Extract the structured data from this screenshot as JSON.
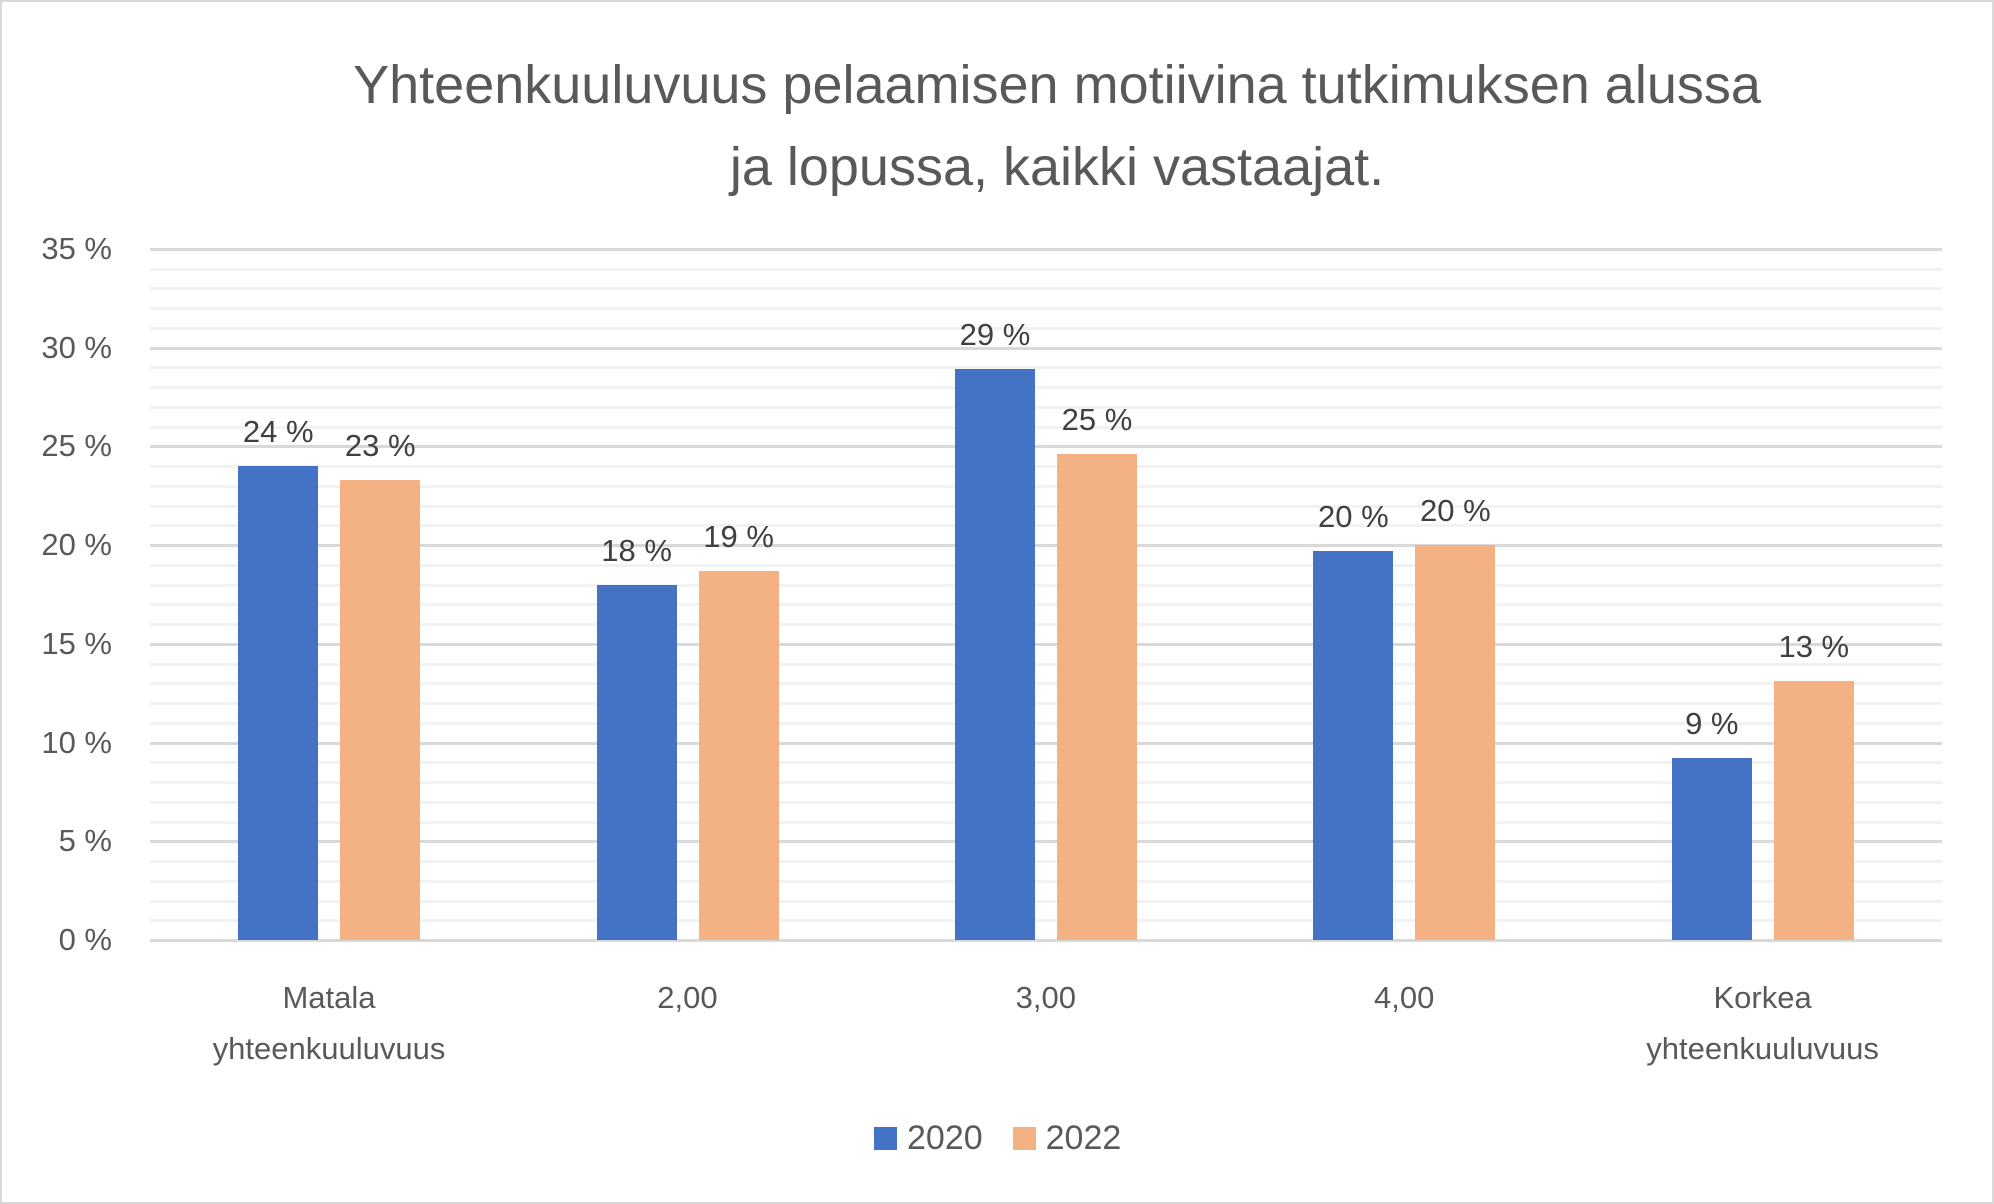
{
  "chart_data": {
    "type": "bar",
    "title": "Yhteenkuuluvuus pelaamisen motiivina tutkimuksen alussa ja lopussa, kaikki vastaajat.",
    "title_lines": [
      "Yhteenkuuluvuus pelaamisen motiivina tutkimuksen alussa",
      "ja lopussa, kaikki vastaajat."
    ],
    "categories": [
      "Matala yhteenkuuluvuus",
      "2,00",
      "3,00",
      "4,00",
      "Korkea yhteenkuuluvuus"
    ],
    "category_lines": [
      [
        "Matala",
        "yhteenkuuluvuus"
      ],
      [
        "2,00"
      ],
      [
        "3,00"
      ],
      [
        "4,00"
      ],
      [
        "Korkea",
        "yhteenkuuluvuus"
      ]
    ],
    "series": [
      {
        "name": "2020",
        "color": "#4472c4",
        "values": [
          24.0,
          18.0,
          28.9,
          19.7,
          9.2
        ],
        "labels": [
          "24 %",
          "18 %",
          "29 %",
          "20 %",
          "9 %"
        ]
      },
      {
        "name": "2022",
        "color": "#f4b183",
        "values": [
          23.3,
          18.7,
          24.6,
          20.0,
          13.1
        ],
        "labels": [
          "23 %",
          "19 %",
          "25 %",
          "20 %",
          "13 %"
        ]
      }
    ],
    "xlabel": "",
    "ylabel": "",
    "ylim": [
      0,
      35
    ],
    "yticks": [
      "0 %",
      "5 %",
      "10 %",
      "15 %",
      "20 %",
      "25 %",
      "30 %",
      "35 %"
    ],
    "ytick_values": [
      0,
      5,
      10,
      15,
      20,
      25,
      30,
      35
    ],
    "grid": {
      "major_step": 5,
      "minor_step": 1
    },
    "legend_position": "bottom"
  },
  "legend": {
    "items": [
      {
        "label": "2020",
        "color": "#4472c4"
      },
      {
        "label": "2022",
        "color": "#f4b183"
      }
    ]
  }
}
